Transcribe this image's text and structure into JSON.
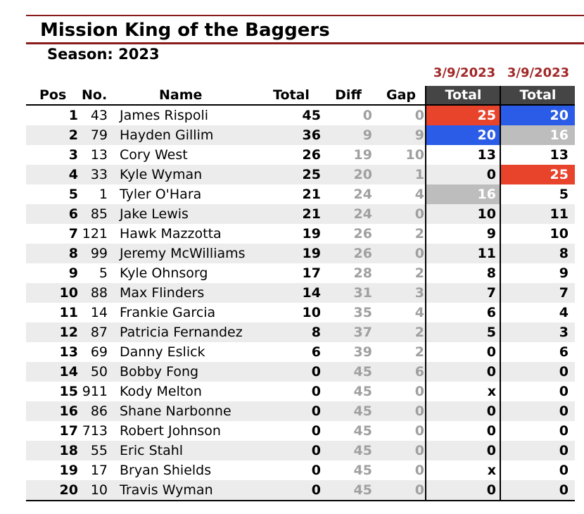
{
  "title": "Mission King of the Baggers",
  "season": "Season: 2023",
  "event_dates": [
    "3/9/2023",
    "3/9/2023"
  ],
  "colors": {
    "rule": "#8b1a1a",
    "date": "#a12828",
    "first": "#e8432b",
    "second": "#2b5ce8",
    "third": "#bdbdbd",
    "header_bg": "#454545"
  },
  "headers": {
    "pos": "Pos",
    "no": "No.",
    "name": "Name",
    "total": "Total",
    "diff": "Diff",
    "gap": "Gap",
    "event1": "Total",
    "event2": "Total"
  },
  "rows": [
    {
      "pos": "1",
      "no": "43",
      "name": "James Rispoli",
      "total": "45",
      "diff": "0",
      "gap": "0",
      "e1": "25",
      "e1_hl": "red",
      "e2": "20",
      "e2_hl": "blue"
    },
    {
      "pos": "2",
      "no": "79",
      "name": "Hayden Gillim",
      "total": "36",
      "diff": "9",
      "gap": "9",
      "e1": "20",
      "e1_hl": "blue",
      "e2": "16",
      "e2_hl": "gray"
    },
    {
      "pos": "3",
      "no": "13",
      "name": "Cory West",
      "total": "26",
      "diff": "19",
      "gap": "10",
      "e1": "13",
      "e1_hl": "",
      "e2": "13",
      "e2_hl": ""
    },
    {
      "pos": "4",
      "no": "33",
      "name": "Kyle Wyman",
      "total": "25",
      "diff": "20",
      "gap": "1",
      "e1": "0",
      "e1_hl": "",
      "e2": "25",
      "e2_hl": "red"
    },
    {
      "pos": "5",
      "no": "1",
      "name": "Tyler O'Hara",
      "total": "21",
      "diff": "24",
      "gap": "4",
      "e1": "16",
      "e1_hl": "gray",
      "e2": "5",
      "e2_hl": ""
    },
    {
      "pos": "6",
      "no": "85",
      "name": "Jake Lewis",
      "total": "21",
      "diff": "24",
      "gap": "0",
      "e1": "10",
      "e1_hl": "",
      "e2": "11",
      "e2_hl": ""
    },
    {
      "pos": "7",
      "no": "121",
      "name": "Hawk Mazzotta",
      "total": "19",
      "diff": "26",
      "gap": "2",
      "e1": "9",
      "e1_hl": "",
      "e2": "10",
      "e2_hl": ""
    },
    {
      "pos": "8",
      "no": "99",
      "name": "Jeremy McWilliams",
      "total": "19",
      "diff": "26",
      "gap": "0",
      "e1": "11",
      "e1_hl": "",
      "e2": "8",
      "e2_hl": ""
    },
    {
      "pos": "9",
      "no": "5",
      "name": "Kyle Ohnsorg",
      "total": "17",
      "diff": "28",
      "gap": "2",
      "e1": "8",
      "e1_hl": "",
      "e2": "9",
      "e2_hl": ""
    },
    {
      "pos": "10",
      "no": "88",
      "name": "Max Flinders",
      "total": "14",
      "diff": "31",
      "gap": "3",
      "e1": "7",
      "e1_hl": "",
      "e2": "7",
      "e2_hl": ""
    },
    {
      "pos": "11",
      "no": "14",
      "name": "Frankie Garcia",
      "total": "10",
      "diff": "35",
      "gap": "4",
      "e1": "6",
      "e1_hl": "",
      "e2": "4",
      "e2_hl": ""
    },
    {
      "pos": "12",
      "no": "87",
      "name": "Patricia Fernandez",
      "total": "8",
      "diff": "37",
      "gap": "2",
      "e1": "5",
      "e1_hl": "",
      "e2": "3",
      "e2_hl": ""
    },
    {
      "pos": "13",
      "no": "69",
      "name": "Danny Eslick",
      "total": "6",
      "diff": "39",
      "gap": "2",
      "e1": "0",
      "e1_hl": "",
      "e2": "6",
      "e2_hl": ""
    },
    {
      "pos": "14",
      "no": "50",
      "name": "Bobby Fong",
      "total": "0",
      "diff": "45",
      "gap": "6",
      "e1": "0",
      "e1_hl": "",
      "e2": "0",
      "e2_hl": ""
    },
    {
      "pos": "15",
      "no": "911",
      "name": "Kody Melton",
      "total": "0",
      "diff": "45",
      "gap": "0",
      "e1": "x",
      "e1_hl": "",
      "e2": "0",
      "e2_hl": ""
    },
    {
      "pos": "16",
      "no": "86",
      "name": "Shane Narbonne",
      "total": "0",
      "diff": "45",
      "gap": "0",
      "e1": "0",
      "e1_hl": "",
      "e2": "0",
      "e2_hl": ""
    },
    {
      "pos": "17",
      "no": "713",
      "name": "Robert Johnson",
      "total": "0",
      "diff": "45",
      "gap": "0",
      "e1": "0",
      "e1_hl": "",
      "e2": "0",
      "e2_hl": ""
    },
    {
      "pos": "18",
      "no": "55",
      "name": "Eric Stahl",
      "total": "0",
      "diff": "45",
      "gap": "0",
      "e1": "0",
      "e1_hl": "",
      "e2": "0",
      "e2_hl": ""
    },
    {
      "pos": "19",
      "no": "17",
      "name": "Bryan Shields",
      "total": "0",
      "diff": "45",
      "gap": "0",
      "e1": "x",
      "e1_hl": "",
      "e2": "0",
      "e2_hl": ""
    },
    {
      "pos": "20",
      "no": "10",
      "name": "Travis Wyman",
      "total": "0",
      "diff": "45",
      "gap": "0",
      "e1": "0",
      "e1_hl": "",
      "e2": "0",
      "e2_hl": ""
    }
  ]
}
